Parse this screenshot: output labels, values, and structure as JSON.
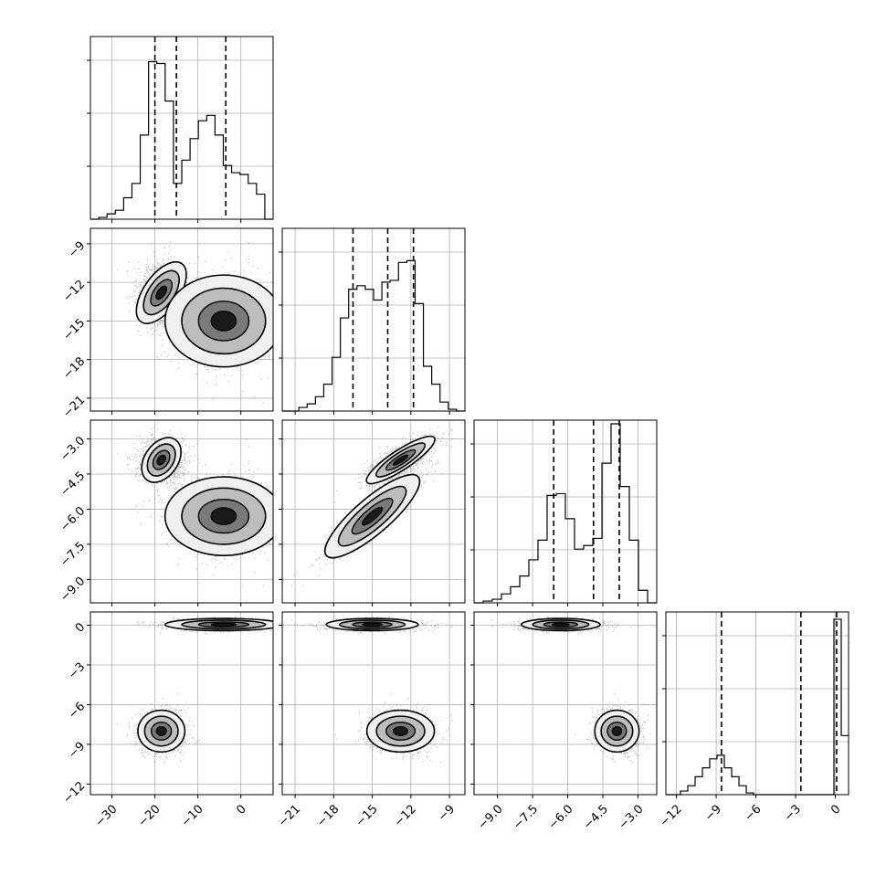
{
  "chart_data": {
    "type": "corner",
    "params": [
      {
        "ticks": [
          -30,
          -20,
          -10,
          0
        ],
        "range": [
          -35,
          7.5
        ]
      },
      {
        "ticks": [
          -21,
          -18,
          -15,
          -12,
          -9
        ],
        "range": [
          -22,
          -7.8
        ]
      },
      {
        "ticks": [
          -9.0,
          -7.5,
          -6.0,
          -4.5,
          -3.0
        ],
        "range": [
          -10.0,
          -2.2
        ]
      },
      {
        "ticks": [
          -12,
          -9,
          -6,
          -3,
          0
        ],
        "range": [
          -12.8,
          1.0
        ]
      }
    ],
    "tick_labels": {
      "p0": [
        "−30",
        "−20",
        "−10",
        "0"
      ],
      "p1": [
        "−21",
        "−18",
        "−15",
        "−12",
        "−9"
      ],
      "p2": [
        "−9.0",
        "−7.5",
        "−6.0",
        "−4.5",
        "−3.0"
      ],
      "p3": [
        "−12",
        "−9",
        "−6",
        "−3",
        "0"
      ]
    },
    "quantile_lines": [
      [
        -20,
        -15,
        -3.5
      ],
      [
        -16.5,
        -13.8,
        -11.8
      ],
      [
        -6.6,
        -4.9,
        -3.8
      ],
      [
        -8.6,
        -2.6,
        0.1
      ]
    ],
    "histograms": [
      {
        "values": [
          0.0,
          0.01,
          0.03,
          0.05,
          0.12,
          0.2,
          0.47,
          0.88,
          0.87,
          0.66,
          0.2,
          0.33,
          0.45,
          0.55,
          0.58,
          0.47,
          0.3,
          0.26,
          0.25,
          0.2,
          0.14,
          0.0
        ]
      },
      {
        "values": [
          0.0,
          0.0,
          0.02,
          0.04,
          0.08,
          0.15,
          0.3,
          0.52,
          0.68,
          0.7,
          0.68,
          0.62,
          0.72,
          0.73,
          0.83,
          0.84,
          0.6,
          0.25,
          0.15,
          0.05,
          0.01,
          0.0
        ]
      },
      {
        "values": [
          0.0,
          0.01,
          0.02,
          0.05,
          0.09,
          0.15,
          0.24,
          0.35,
          0.6,
          0.61,
          0.47,
          0.3,
          0.32,
          0.36,
          0.78,
          1.0,
          0.65,
          0.35,
          0.07,
          0.0
        ]
      },
      {
        "values": [
          0.0,
          0.0,
          0.02,
          0.05,
          0.1,
          0.15,
          0.2,
          0.22,
          0.15,
          0.1,
          0.05,
          0.01,
          0.0,
          0.0,
          0.0,
          0.0,
          0.0,
          0.0,
          0.0,
          0.0,
          0.0,
          0.0,
          0.0,
          0.98,
          0.33
        ]
      }
    ],
    "clusters": [
      {
        "mu": [
          -18.5,
          -12.8,
          -3.9,
          -8.0
        ],
        "sd": [
          2.6,
          1.25,
          0.45,
          0.75
        ],
        "r12": 0.75,
        "n": 1400
      },
      {
        "mu": [
          -4.0,
          -15.0,
          -6.3,
          0.05
        ],
        "sd": [
          6.5,
          1.7,
          0.8,
          0.22
        ],
        "r12": 0.92,
        "n": 1400
      }
    ],
    "pairwise_panels": [
      {
        "x_param": 0,
        "y_param": 1
      },
      {
        "x_param": 0,
        "y_param": 2
      },
      {
        "x_param": 1,
        "y_param": 2
      },
      {
        "x_param": 0,
        "y_param": 3
      },
      {
        "x_param": 1,
        "y_param": 3
      },
      {
        "x_param": 2,
        "y_param": 3
      }
    ],
    "grid": true,
    "colors": {
      "line": "#000000",
      "grid": "#b0b0b0",
      "point": "#000000",
      "fill_light": "#f0f0f0",
      "fill_mid": "#bdbdbd",
      "fill_dark": "#7a7a7a",
      "peak": "#1a1a1a"
    }
  }
}
